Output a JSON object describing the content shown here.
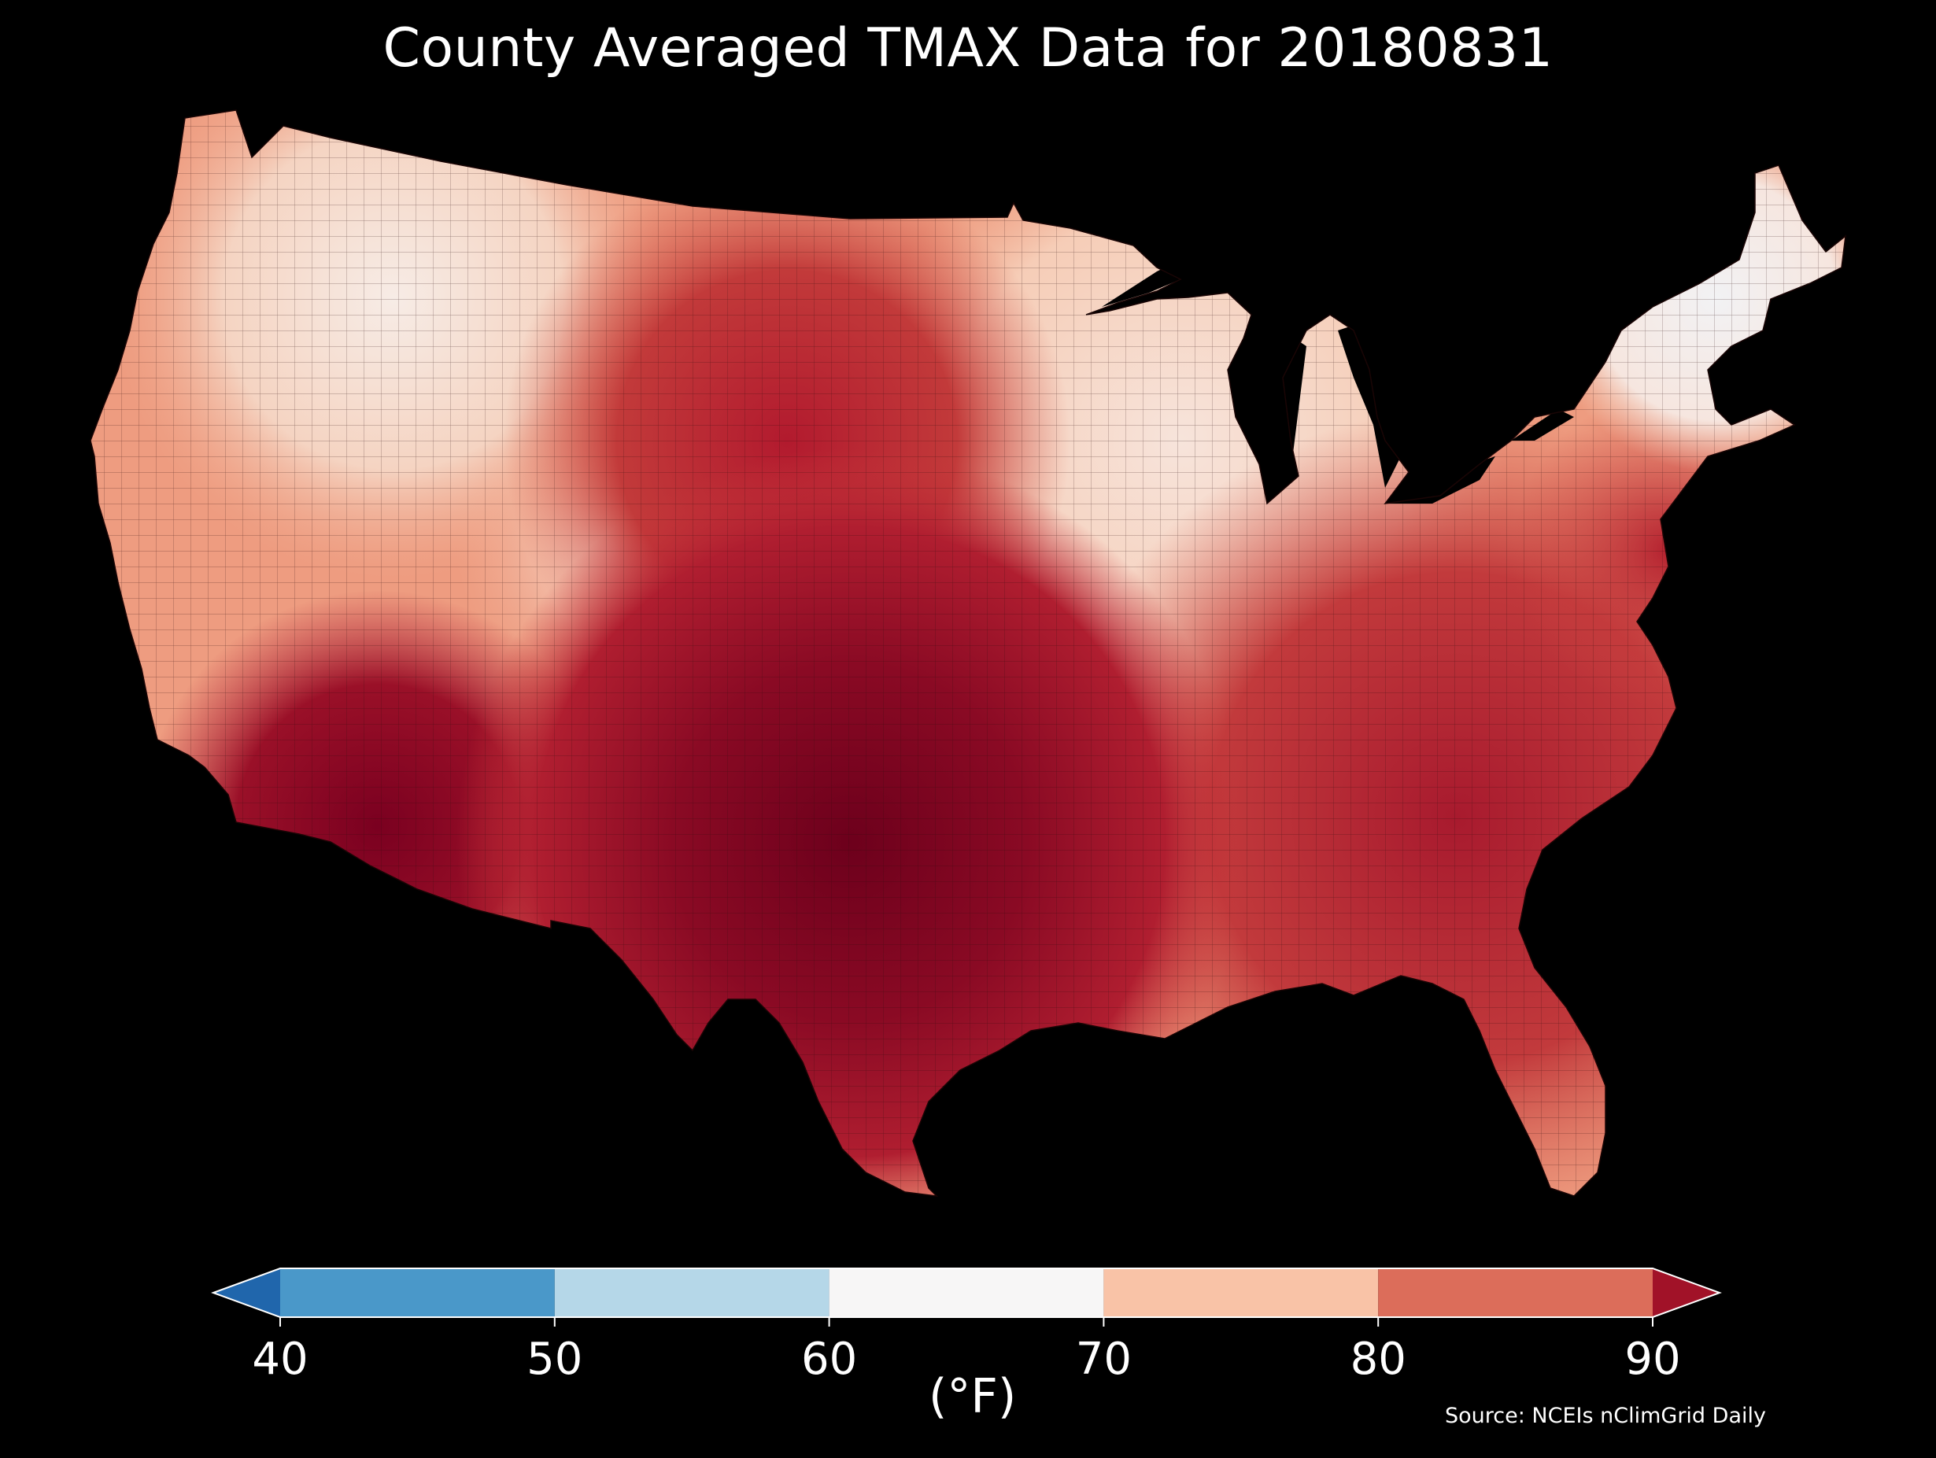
{
  "title": "County Averaged TMAX Data for 20180831",
  "colorbar": {
    "unit": "(°F)",
    "ticks": [
      "40",
      "50",
      "60",
      "70",
      "80",
      "90"
    ],
    "bins": [
      {
        "from": 40,
        "to": 50,
        "color": "#4a98c9"
      },
      {
        "from": 50,
        "to": 60,
        "color": "#b5d7e8"
      },
      {
        "from": 60,
        "to": 70,
        "color": "#f7f6f6"
      },
      {
        "from": 70,
        "to": 80,
        "color": "#f9c3a7"
      },
      {
        "from": 80,
        "to": 90,
        "color": "#dc6d5a"
      }
    ],
    "under_color": "#2066ac",
    "over_color": "#a11228"
  },
  "source": "Source: NCEIs nClimGrid Daily",
  "palette": {
    "very_hot": "#7a0020",
    "hot": "#a8162b",
    "warm": "#d25a4c",
    "mild": "#ef9d82",
    "cool": "#f8d5c4",
    "cold": "#f5f1f0",
    "background": "#000000"
  }
}
